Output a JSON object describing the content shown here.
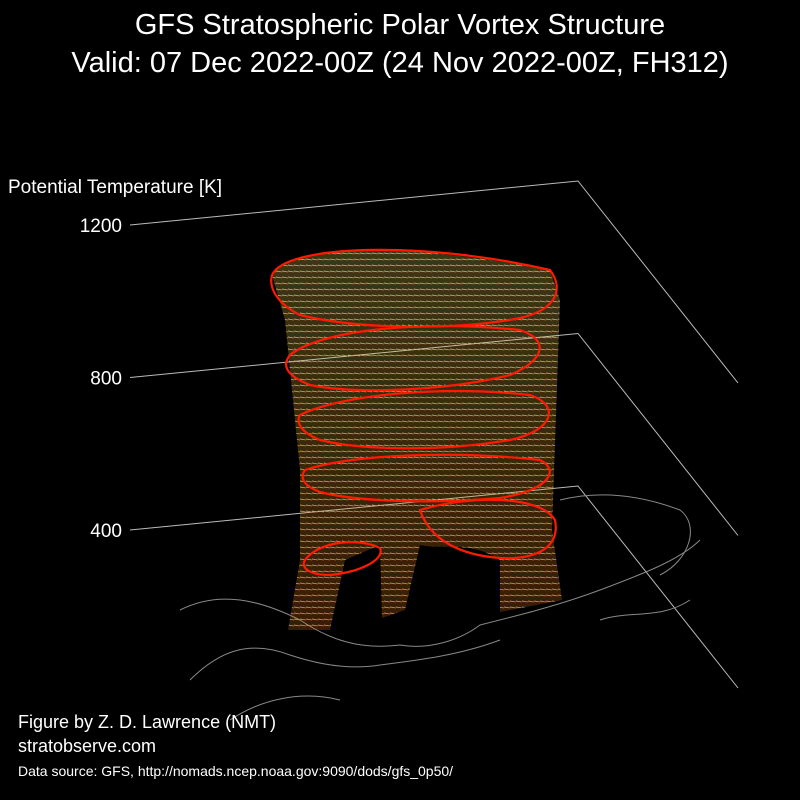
{
  "chart_data": {
    "type": "surface3d",
    "title": "GFS Stratospheric Polar Vortex Structure",
    "subtitle": "Valid: 07 Dec 2022-00Z  (24 Nov 2022-00Z, FH312)",
    "z_label": "Potential Temperature [K]",
    "zlim": [
      400,
      1200
    ],
    "zticks": [
      400,
      800,
      1200
    ],
    "credit": "Figure by Z. D. Lawrence (NMT)",
    "website": "stratobserve.com",
    "source": "Data source: GFS, http://nomads.ncep.noaa.gov:9090/dods/gfs_0p50/"
  }
}
